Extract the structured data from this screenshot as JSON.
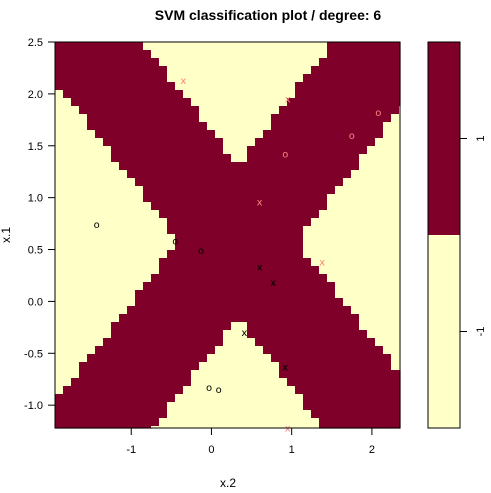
{
  "chart_data": {
    "type": "heatmap",
    "title": "SVM classification plot  / degree: 6",
    "xlabel": "x.2",
    "ylabel": "x.1",
    "xlim": [
      -1.95,
      2.35
    ],
    "ylim": [
      -1.22,
      2.5
    ],
    "x_ticks": [
      -1,
      0,
      1,
      2
    ],
    "y_ticks": [
      -1.0,
      -0.5,
      0.0,
      0.5,
      1.0,
      1.5,
      2.0,
      2.5
    ],
    "x_tick_labels": [
      "-1",
      "0",
      "1",
      "2"
    ],
    "y_tick_labels": [
      "-1.0",
      "-0.5",
      "0.0",
      "0.5",
      "1.0",
      "1.5",
      "2.0",
      "2.5"
    ],
    "classes": [
      {
        "label": "1",
        "color": "#7f0029"
      },
      {
        "label": "-1",
        "color": "#ffffc8"
      }
    ],
    "legend_labels": [
      "1",
      "-1"
    ],
    "legend_placement": "right",
    "legend_split_fraction": 0.5,
    "points": [
      {
        "x": -1.43,
        "y": 0.74,
        "symbol": "o",
        "color": "#000000"
      },
      {
        "x": -0.45,
        "y": 0.58,
        "symbol": "o",
        "color": "#000000"
      },
      {
        "x": -0.13,
        "y": 0.49,
        "symbol": "o",
        "color": "#000000"
      },
      {
        "x": -0.03,
        "y": -0.83,
        "symbol": "o",
        "color": "#000000"
      },
      {
        "x": 0.09,
        "y": -0.85,
        "symbol": "o",
        "color": "#000000"
      },
      {
        "x": 0.6,
        "y": 0.33,
        "symbol": "x",
        "color": "#000000"
      },
      {
        "x": 0.77,
        "y": 0.18,
        "symbol": "x",
        "color": "#000000"
      },
      {
        "x": 0.41,
        "y": -0.3,
        "symbol": "x",
        "color": "#000000"
      },
      {
        "x": 0.92,
        "y": -0.63,
        "symbol": "x",
        "color": "#000000"
      },
      {
        "x": -0.35,
        "y": 2.13,
        "symbol": "x",
        "color": "#ff8080"
      },
      {
        "x": 0.95,
        "y": 1.95,
        "symbol": "x",
        "color": "#ff8080"
      },
      {
        "x": 0.6,
        "y": 0.96,
        "symbol": "x",
        "color": "#ff8080"
      },
      {
        "x": 1.38,
        "y": 0.38,
        "symbol": "x",
        "color": "#ff8080"
      },
      {
        "x": 0.95,
        "y": -1.22,
        "symbol": "x",
        "color": "#ff8080"
      },
      {
        "x": 0.92,
        "y": 1.42,
        "symbol": "o",
        "color": "#ff8080"
      },
      {
        "x": 1.75,
        "y": 1.6,
        "symbol": "o",
        "color": "#ff8080"
      },
      {
        "x": 2.08,
        "y": 1.82,
        "symbol": "o",
        "color": "#ff8080"
      }
    ]
  }
}
